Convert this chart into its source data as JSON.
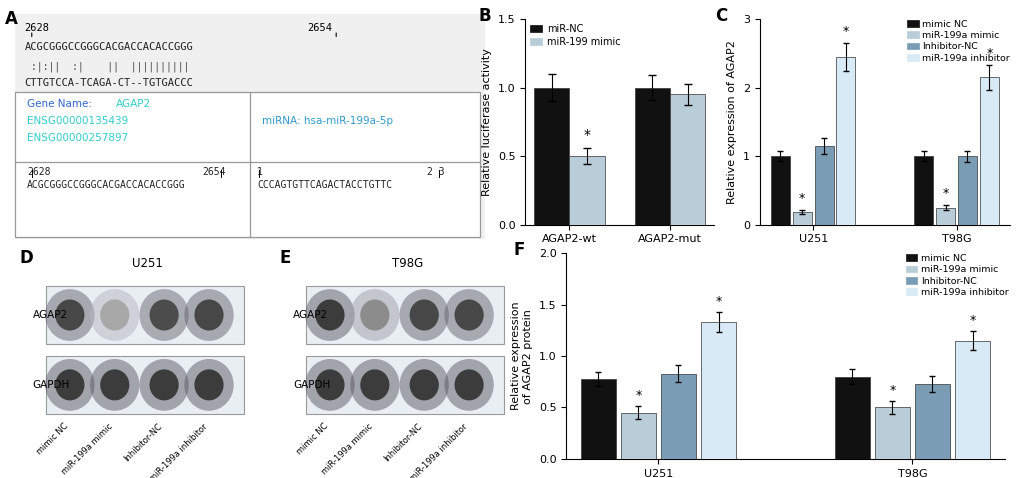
{
  "panel_A": {
    "num_left": "2628",
    "num_right": "2654",
    "seq1": "ACGCGGGCCGGGCACGACCACACCGGG",
    "match": " :|:||  :|    ||  ||||||||||",
    "seq2": "CTTGTCCA-TCAGA-CT--TGTGACCC",
    "gene_name": "AGAP2",
    "gene_name_label": "Gene Name:",
    "ensembl1": "ENSG00000135439",
    "ensembl2": "ENSG00000257897",
    "mirna_label": "miRNA: hsa-miR-199a-5p",
    "bottom_left_num_l": "2628",
    "bottom_left_num_r": "2654",
    "bottom_left_seq": "ACGCGGGCCGGGCACGACCACACCGGG",
    "bottom_right_num_l": "1",
    "bottom_right_num_r": "2 3",
    "bottom_right_seq": "CCCAGTGTTCAGACTACCTGTTC"
  },
  "panel_B": {
    "groups": [
      "AGAP2-wt",
      "AGAP2-mut"
    ],
    "bar_colors": [
      "#111111",
      "#b8cdd8"
    ],
    "series_labels": [
      "miR-NC",
      "miR-199 mimic"
    ],
    "values": [
      [
        1.0,
        0.5
      ],
      [
        1.0,
        0.95
      ]
    ],
    "errors": [
      [
        0.1,
        0.06
      ],
      [
        0.09,
        0.08
      ]
    ],
    "ylabel": "Relative luciferase activity",
    "ylim": [
      0,
      1.5
    ],
    "yticks": [
      0.0,
      0.5,
      1.0,
      1.5
    ],
    "sig_wt_mimic": true,
    "sig_mut_mimic": false
  },
  "panel_C": {
    "bar_colors": [
      "#111111",
      "#b8cdd8",
      "#7a9db5",
      "#d8eaf5"
    ],
    "series_labels": [
      "mimic NC",
      "miR-199a mimic",
      "Inhibitor-NC",
      "miR-199a inhibitor"
    ],
    "values_U251": [
      1.0,
      0.18,
      1.15,
      2.45
    ],
    "values_T98G": [
      1.0,
      0.25,
      1.0,
      2.15
    ],
    "errors_U251": [
      0.07,
      0.03,
      0.12,
      0.2
    ],
    "errors_T98G": [
      0.07,
      0.04,
      0.08,
      0.18
    ],
    "ylabel": "Relative expression of AGAP2",
    "ylim": [
      0,
      3
    ],
    "yticks": [
      0,
      1,
      2,
      3
    ],
    "sig_U251": [
      false,
      true,
      false,
      true
    ],
    "sig_T98G": [
      false,
      true,
      false,
      true
    ]
  },
  "panel_D": {
    "cell_line": "U251",
    "agap2_intensities": [
      0.8,
      0.38,
      0.78,
      0.8
    ],
    "gapdh_intensities": [
      0.85,
      0.85,
      0.85,
      0.85
    ],
    "xlabels": [
      "mimic NC",
      "miR-199a mimic",
      "Inhibitor-NC",
      "miR-199a inhibitor"
    ]
  },
  "panel_E": {
    "cell_line": "T98G",
    "agap2_intensities": [
      0.85,
      0.5,
      0.8,
      0.8
    ],
    "gapdh_intensities": [
      0.85,
      0.85,
      0.85,
      0.85
    ],
    "xlabels": [
      "mimic NC",
      "miR-199a mimic",
      "Inhibitor-NC",
      "miR-199a inhibitor"
    ]
  },
  "panel_F": {
    "bar_colors": [
      "#111111",
      "#b8cdd8",
      "#7a9db5",
      "#d8eaf5"
    ],
    "series_labels": [
      "mimic NC",
      "miR-199a mimic",
      "Inhibitor-NC",
      "miR-199a inhibitor"
    ],
    "values_U251": [
      0.78,
      0.45,
      0.83,
      1.33
    ],
    "values_T98G": [
      0.8,
      0.5,
      0.73,
      1.15
    ],
    "errors_U251": [
      0.07,
      0.06,
      0.08,
      0.1
    ],
    "errors_T98G": [
      0.07,
      0.06,
      0.08,
      0.09
    ],
    "ylabel": "Relative expression\nof AGAP2 protein",
    "ylim": [
      0,
      2.0
    ],
    "yticks": [
      0.0,
      0.5,
      1.0,
      1.5,
      2.0
    ],
    "sig_U251": [
      false,
      true,
      false,
      true
    ],
    "sig_T98G": [
      false,
      true,
      false,
      true
    ]
  },
  "bg_color": "#ffffff",
  "label_fontsize": 8.5,
  "tick_fontsize": 8,
  "panel_label_fontsize": 12
}
